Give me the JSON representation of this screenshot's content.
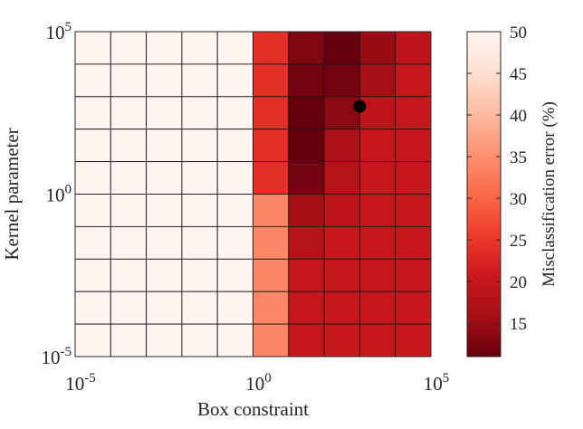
{
  "chart_data": {
    "type": "heatmap",
    "title": "",
    "xlabel": "Box constraint",
    "ylabel": "Kernel parameter",
    "x_scale": "log",
    "y_scale": "log",
    "x_range_log10": [
      -5,
      5
    ],
    "y_range_log10": [
      -5,
      5
    ],
    "x_ticks": [
      {
        "base": "10",
        "exp": "-5"
      },
      {
        "base": "10",
        "exp": "0"
      },
      {
        "base": "10",
        "exp": "5"
      }
    ],
    "y_ticks": [
      {
        "base": "10",
        "exp": "-5"
      },
      {
        "base": "10",
        "exp": "0"
      },
      {
        "base": "10",
        "exp": "5"
      }
    ],
    "grid_rows_top_to_bottom": [
      [
        50,
        50,
        50,
        50,
        50,
        24,
        13,
        11,
        15,
        19
      ],
      [
        50,
        50,
        50,
        50,
        50,
        24,
        12,
        12,
        16,
        20
      ],
      [
        50,
        50,
        50,
        50,
        50,
        24,
        11,
        14,
        19,
        20
      ],
      [
        50,
        50,
        50,
        50,
        50,
        24,
        11,
        17,
        20,
        20
      ],
      [
        50,
        50,
        50,
        50,
        50,
        24,
        12,
        18,
        20,
        20
      ],
      [
        50,
        50,
        50,
        50,
        50,
        34,
        16,
        19,
        20,
        20
      ],
      [
        50,
        50,
        50,
        50,
        50,
        34,
        18,
        20,
        20,
        20
      ],
      [
        50,
        50,
        50,
        50,
        50,
        34,
        20,
        20,
        20,
        20
      ],
      [
        50,
        50,
        50,
        50,
        50,
        34,
        20,
        20,
        20,
        20
      ],
      [
        50,
        50,
        50,
        50,
        50,
        34,
        20,
        20,
        20,
        20
      ]
    ],
    "optimum_marker": {
      "x_log10": 3,
      "y_log10": 2.7
    },
    "colorbar": {
      "label": "Misclassification error (%)",
      "min": 11,
      "max": 50,
      "ticks": [
        "15",
        "20",
        "25",
        "30",
        "35",
        "40",
        "45",
        "50"
      ],
      "tick_values": [
        15,
        20,
        25,
        30,
        35,
        40,
        45,
        50
      ],
      "colormap_stops": [
        "#67000d",
        "#a50f15",
        "#cb181d",
        "#ef3b2c",
        "#fb6a4a",
        "#fc9272",
        "#fcbba1",
        "#fee0d2",
        "#fff5f0"
      ]
    },
    "grid": true,
    "legend": "none"
  }
}
